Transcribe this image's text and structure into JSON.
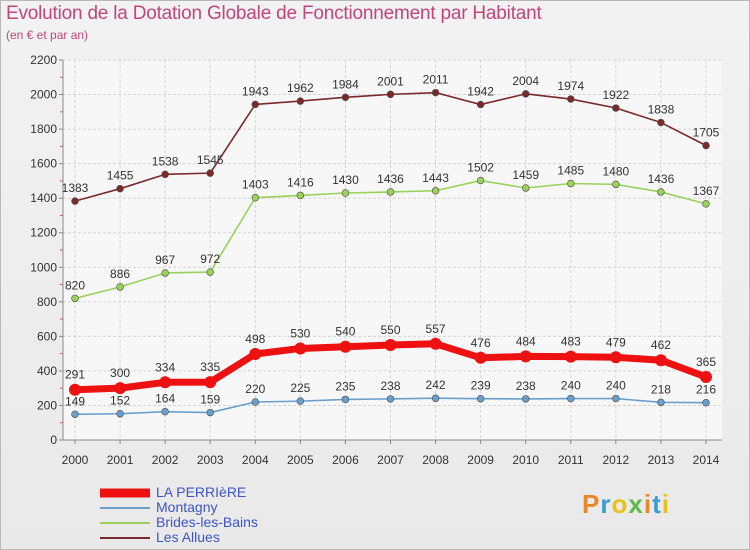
{
  "header": {
    "title": "Evolution de la Dotation Globale de Fonctionnement par Habitant",
    "subtitle": "(en € et par an)"
  },
  "logo": {
    "text": "Proxiti",
    "colors": [
      "#e8862a",
      "#3a9bd5",
      "#e8c21a",
      "#5fb848"
    ]
  },
  "chart_data": {
    "type": "line",
    "title": "Evolution de la Dotation Globale de Fonctionnement par Habitant",
    "subtitle": "(en € et par an)",
    "xlabel": "",
    "ylabel": "",
    "x": [
      "2000",
      "2001",
      "2002",
      "2003",
      "2004",
      "2005",
      "2006",
      "2007",
      "2008",
      "2009",
      "2010",
      "2011",
      "2012",
      "2013",
      "2014"
    ],
    "ylim": [
      0,
      2200
    ],
    "yticks": [
      "0",
      "200",
      "400",
      "600",
      "800",
      "1000",
      "1200",
      "1400",
      "1600",
      "1800",
      "2000",
      "2200"
    ],
    "grid": true,
    "legend_position": "bottom-left",
    "series": [
      {
        "name": "LA PERRIèRE",
        "color": "#ee1111",
        "emphasis": true,
        "values": [
          291,
          300,
          334,
          335,
          498,
          530,
          540,
          550,
          557,
          476,
          484,
          483,
          479,
          462,
          365
        ]
      },
      {
        "name": "Montagny",
        "color": "#6a9fcc",
        "values": [
          149,
          152,
          164,
          159,
          220,
          225,
          235,
          238,
          242,
          239,
          238,
          240,
          240,
          218,
          216
        ]
      },
      {
        "name": "Brides-les-Bains",
        "color": "#99d15a",
        "values": [
          820,
          886,
          967,
          972,
          1403,
          1416,
          1430,
          1436,
          1443,
          1502,
          1459,
          1485,
          1480,
          1436,
          1367
        ]
      },
      {
        "name": "Les Allues",
        "color": "#7a2a2a",
        "values": [
          1383,
          1455,
          1538,
          1545,
          1943,
          1962,
          1984,
          2001,
          2011,
          1942,
          2004,
          1974,
          1922,
          1838,
          1705
        ]
      }
    ]
  }
}
